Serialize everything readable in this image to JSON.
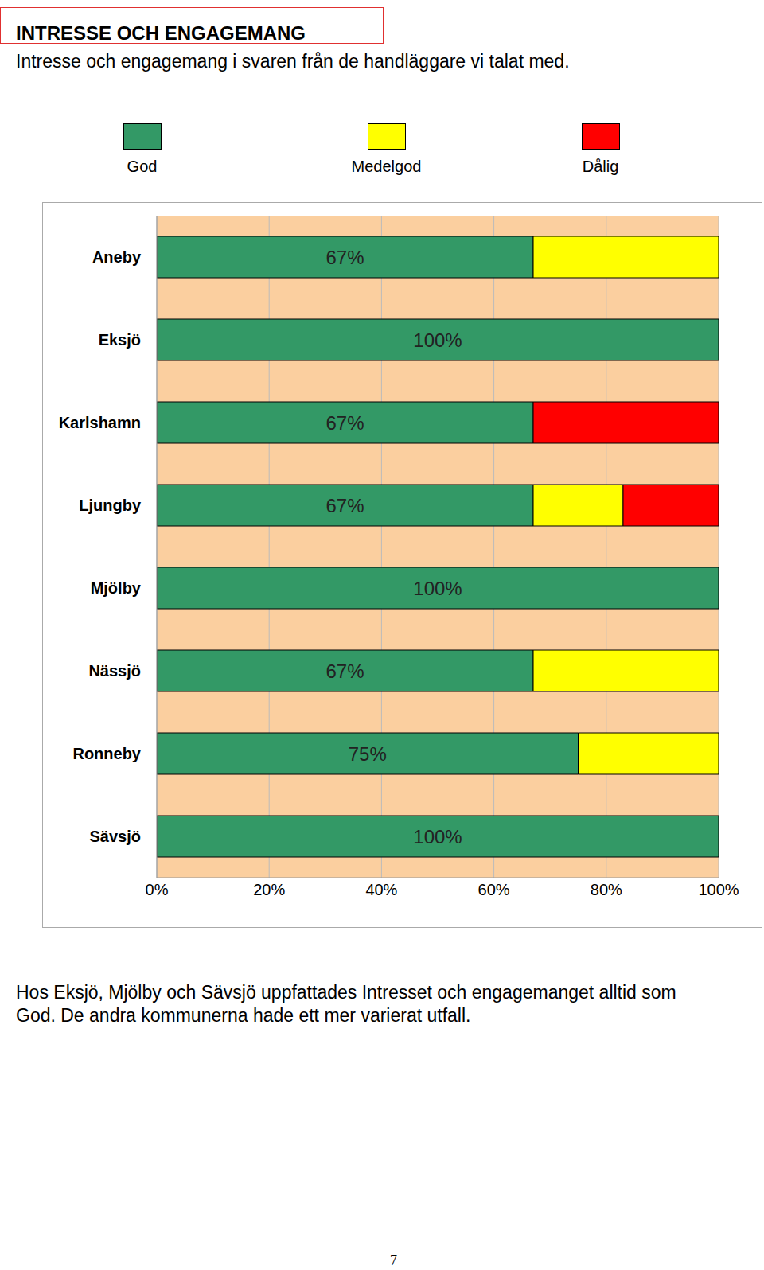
{
  "header": {
    "title": "INTRESSE OCH ENGAGEMANG",
    "subtitle": "Intresse och engagemang i svaren från de handläggare vi talat med."
  },
  "chart_data": {
    "type": "bar",
    "orientation": "horizontal",
    "stacked": true,
    "categories": [
      "Aneby",
      "Eksjö",
      "Karlshamn",
      "Ljungby",
      "Mjölby",
      "Nässjö",
      "Ronneby",
      "Sävsjö"
    ],
    "series": [
      {
        "name": "God",
        "color": "#339966",
        "values": [
          67,
          100,
          67,
          67,
          100,
          67,
          75,
          100
        ],
        "data_labels": true,
        "value_labels": [
          "67%",
          "100%",
          "67%",
          "67%",
          "100%",
          "67%",
          "75%",
          "100%"
        ]
      },
      {
        "name": "Medelgod",
        "color": "#FFFF00",
        "values": [
          33,
          0,
          0,
          16,
          0,
          33,
          25,
          0
        ]
      },
      {
        "name": "Dålig",
        "color": "#FF0000",
        "values": [
          0,
          0,
          33,
          17,
          0,
          0,
          0,
          0
        ]
      }
    ],
    "xlim": [
      0,
      100
    ],
    "xticks": [
      {
        "value": 0,
        "label": "0%"
      },
      {
        "value": 20,
        "label": "20%"
      },
      {
        "value": 40,
        "label": "40%"
      },
      {
        "value": 60,
        "label": "60%"
      },
      {
        "value": 80,
        "label": "80%"
      },
      {
        "value": 100,
        "label": "100%"
      }
    ],
    "grid": true,
    "legend": "top"
  },
  "caption": [
    "Hos Eksjö, Mjölby och Sävsjö uppfattades Intresset och engagemanget alltid som",
    "God. De andra kommunerna hade ett mer varierat utfall."
  ],
  "footer": {
    "page_number": "7"
  }
}
